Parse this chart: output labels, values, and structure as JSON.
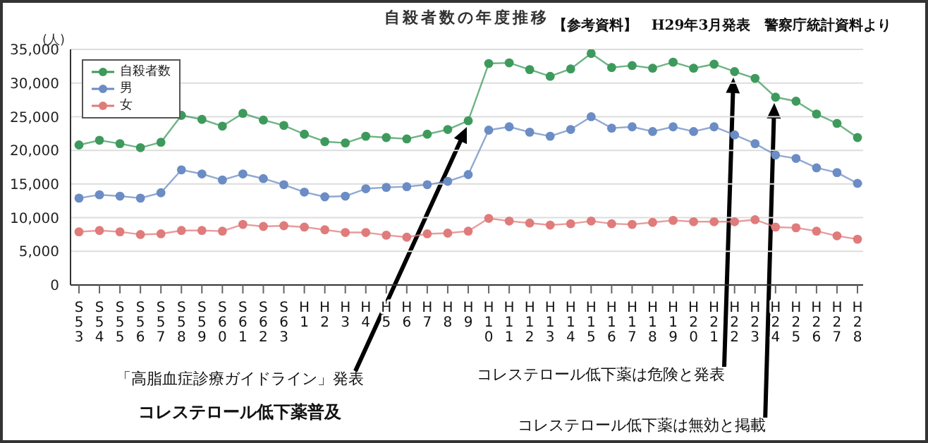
{
  "chart_data": {
    "type": "line",
    "title": "自殺者数の年度推移",
    "ylabel": "(人)",
    "categories": [
      "S53",
      "S54",
      "S55",
      "S56",
      "S57",
      "S58",
      "S59",
      "S60",
      "S61",
      "S62",
      "S63",
      "H1",
      "H2",
      "H3",
      "H4",
      "H5",
      "H6",
      "H7",
      "H8",
      "H9",
      "H10",
      "H11",
      "H12",
      "H13",
      "H14",
      "H15",
      "H16",
      "H17",
      "H18",
      "H19",
      "H20",
      "H21",
      "H22",
      "H23",
      "H24",
      "H25",
      "H26",
      "H27",
      "H28"
    ],
    "series": [
      {
        "name": "自殺者数",
        "color": "#3e9a5c",
        "values": [
          20800,
          21500,
          21000,
          20400,
          21200,
          25200,
          24600,
          23600,
          25500,
          24500,
          23700,
          22400,
          21300,
          21100,
          22100,
          21900,
          21700,
          22400,
          23100,
          24400,
          32900,
          33000,
          32000,
          31000,
          32100,
          34400,
          32300,
          32600,
          32200,
          33100,
          32200,
          32800,
          31700,
          30700,
          27900,
          27300,
          25400,
          24000,
          21900
        ]
      },
      {
        "name": "男",
        "color": "#6b8cc4",
        "values": [
          12900,
          13400,
          13200,
          12900,
          13700,
          17100,
          16500,
          15600,
          16500,
          15800,
          14900,
          13800,
          13100,
          13200,
          14300,
          14500,
          14600,
          14900,
          15400,
          16400,
          23000,
          23500,
          22700,
          22100,
          23100,
          25000,
          23300,
          23500,
          22800,
          23500,
          22800,
          23500,
          22300,
          21000,
          19300,
          18800,
          17400,
          16700,
          15100
        ]
      },
      {
        "name": "女",
        "color": "#e07b7b",
        "values": [
          7900,
          8100,
          7900,
          7500,
          7600,
          8100,
          8100,
          8000,
          9000,
          8700,
          8800,
          8600,
          8200,
          7800,
          7800,
          7400,
          7100,
          7600,
          7700,
          8000,
          9900,
          9500,
          9200,
          8900,
          9100,
          9500,
          9100,
          9000,
          9300,
          9600,
          9400,
          9400,
          9400,
          9700,
          8600,
          8500,
          8000,
          7300,
          6800
        ]
      }
    ],
    "ylim": [
      0,
      35000
    ],
    "yticks": [
      0,
      {
        "value": 5000,
        "label": "5,000"
      },
      {
        "value": 10000,
        "label": "10,000"
      },
      {
        "value": 15000,
        "label": "15,000"
      },
      {
        "value": 20000,
        "label": "20,000"
      },
      {
        "value": 25000,
        "label": "25,000"
      },
      {
        "value": 30000,
        "label": "30,000"
      },
      {
        "value": 35000,
        "label": "35,000"
      }
    ],
    "grid": "y",
    "legend": "top left",
    "marker": "circle",
    "annotations": [
      "【参考資料】　H29年3月発表　警察庁統計資料より",
      "「高脂血症診療ガイドライン」発表",
      "コレステロール低下薬普及",
      "コレステロール低下薬は危険と発表",
      "コレステロール低下薬は無効と掲載"
    ]
  }
}
